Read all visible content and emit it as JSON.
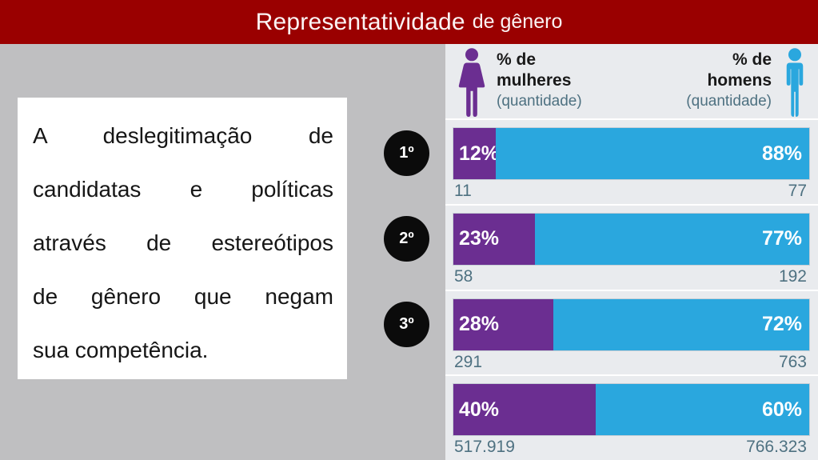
{
  "header": {
    "title_main": "Representatividade",
    "title_sub": "de gênero"
  },
  "text_box": {
    "lines": [
      "A deslegitimação de",
      "candidatas e políticas",
      "através de estereótipos",
      "de gênero que negam",
      "sua competência."
    ]
  },
  "colors": {
    "header_bg": "#9a0000",
    "slide_bg": "#bfbfc1",
    "panel_bg": "#e9ebee",
    "women": "#6b2e91",
    "men": "#2aa7de",
    "count_text": "#4e7181",
    "rank_bg": "#0b0b0b"
  },
  "chart_data": {
    "type": "bar",
    "stacked": true,
    "orientation": "horizontal",
    "title": "Representatividade de gênero",
    "xlim": [
      0,
      100
    ],
    "legend": {
      "women": {
        "line1": "% de",
        "line2": "mulheres",
        "line3": "(quantidade)"
      },
      "men": {
        "line1": "% de",
        "line2": "homens",
        "line3": "(quantidade)"
      }
    },
    "categories": [
      "1º",
      "2º",
      "3º",
      ""
    ],
    "series": [
      {
        "name": "% de mulheres",
        "unit_label": "(quantidade)",
        "color": "#6b2e91",
        "percents": [
          12,
          23,
          28,
          40
        ],
        "counts": [
          "11",
          "58",
          "291",
          "517.919"
        ]
      },
      {
        "name": "% de homens",
        "unit_label": "(quantidade)",
        "color": "#2aa7de",
        "percents": [
          88,
          77,
          72,
          60
        ],
        "counts": [
          "77",
          "192",
          "763",
          "766.323"
        ]
      }
    ]
  }
}
